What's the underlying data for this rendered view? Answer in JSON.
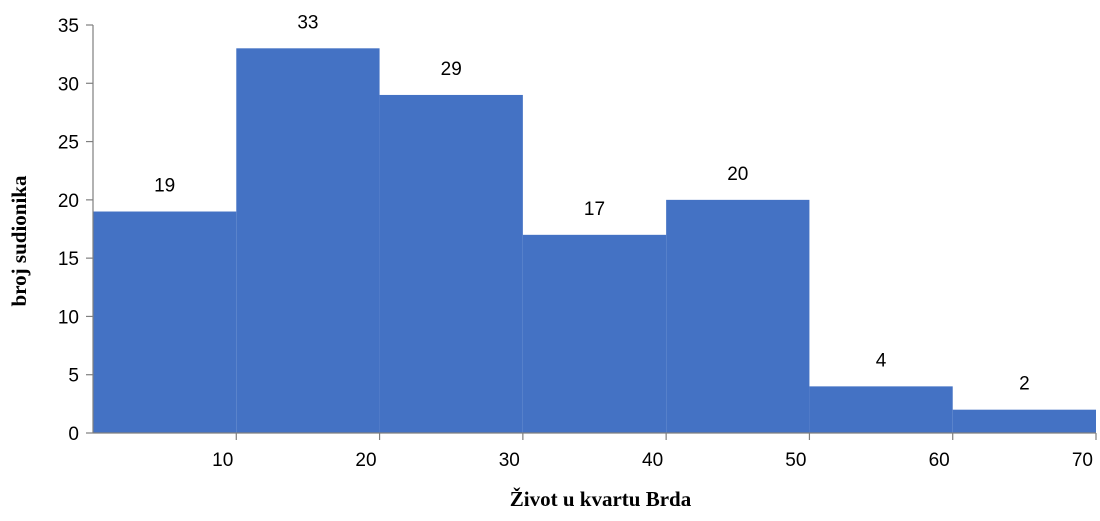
{
  "chart_data": {
    "type": "bar",
    "subtype": "histogram",
    "bins": [
      {
        "start": 0,
        "end": 10,
        "value": 19
      },
      {
        "start": 10,
        "end": 20,
        "value": 33
      },
      {
        "start": 20,
        "end": 30,
        "value": 29
      },
      {
        "start": 30,
        "end": 40,
        "value": 17
      },
      {
        "start": 40,
        "end": 50,
        "value": 20
      },
      {
        "start": 50,
        "end": 60,
        "value": 4
      },
      {
        "start": 60,
        "end": 70,
        "value": 2
      }
    ],
    "data_labels": [
      "19",
      "33",
      "29",
      "17",
      "20",
      "4",
      "2"
    ],
    "xlabel": "Život u kvartu Brda",
    "ylabel": "broj sudionika",
    "xlim": [
      0,
      70
    ],
    "ylim": [
      0,
      35
    ],
    "x_ticks": [
      "10",
      "20",
      "30",
      "40",
      "50",
      "60",
      "70"
    ],
    "x_tick_values": [
      10,
      20,
      30,
      40,
      50,
      60,
      70
    ],
    "y_ticks": [
      "0",
      "5",
      "10",
      "15",
      "20",
      "25",
      "30",
      "35"
    ],
    "y_tick_values": [
      0,
      5,
      10,
      15,
      20,
      25,
      30,
      35
    ],
    "grid": false,
    "legend": "none",
    "bar_color": "#4472c4"
  }
}
